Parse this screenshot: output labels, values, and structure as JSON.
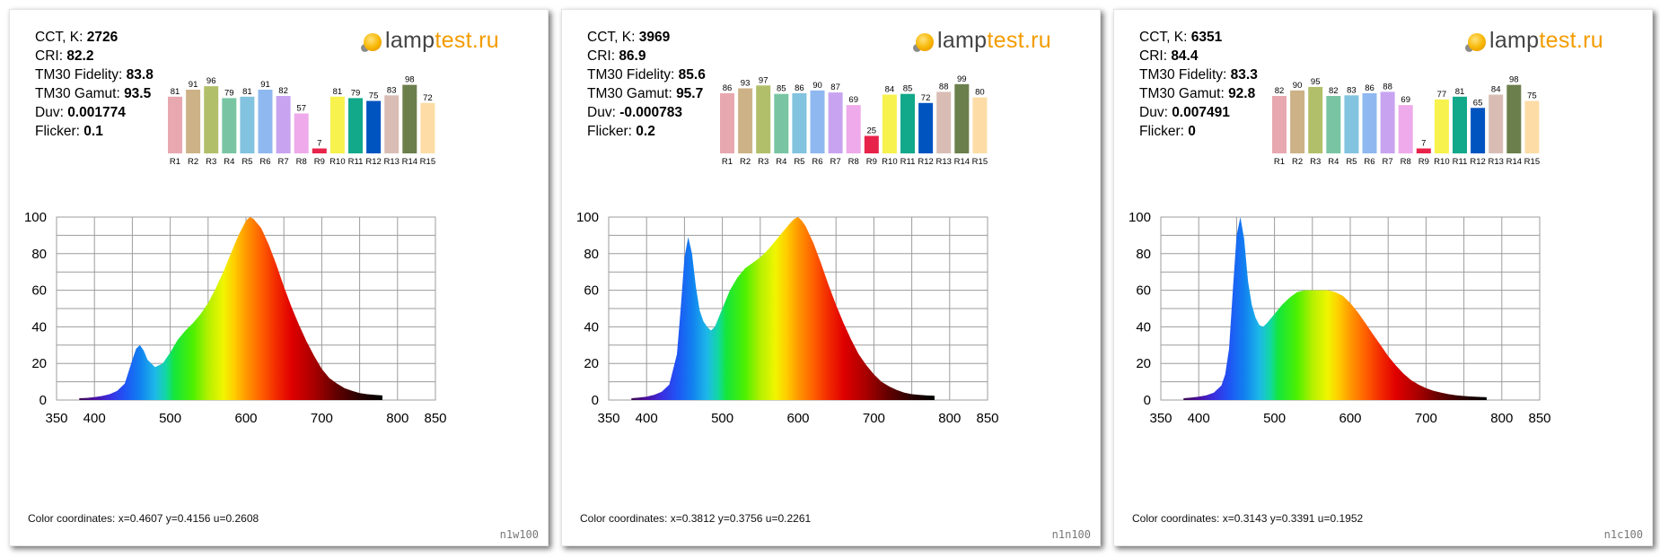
{
  "ri_labels": [
    "R1",
    "R2",
    "R3",
    "R4",
    "R5",
    "R6",
    "R7",
    "R8",
    "R9",
    "R10",
    "R11",
    "R12",
    "R13",
    "R14",
    "R15"
  ],
  "ri_colors": [
    "#e8a8b0",
    "#cdb287",
    "#b2bf6a",
    "#79c5a3",
    "#82c3df",
    "#8fb8f0",
    "#c8a4f0",
    "#eeaaea",
    "#e8234a",
    "#f7f24d",
    "#12a88a",
    "#0054c0",
    "#d9bdb5",
    "#6b7f4c",
    "#fddca6"
  ],
  "labels": {
    "cct": "CCT, K:",
    "cri": "CRI:",
    "fidelity": "TM30 Fidelity:",
    "gamut": "TM30 Gamut:",
    "duv": "Duv:",
    "flicker": "Flicker:"
  },
  "logo": {
    "lamp": "lamp",
    "test": "test.ru"
  },
  "panels": [
    {
      "code": "n1w100",
      "stats": {
        "cct": "2726",
        "cri": "82.2",
        "fidelity": "83.8",
        "gamut": "93.5",
        "duv": "0.001774",
        "flicker": "0.1"
      },
      "coords": "Color coordinates: x=0.4607 y=0.4156 u=0.2608",
      "chart_data": {
        "type": "area",
        "x_axis": {
          "min": 350,
          "max": 850,
          "ticks": [
            350,
            400,
            500,
            600,
            700,
            800,
            850
          ]
        },
        "y_axis": {
          "min": 0,
          "max": 100,
          "ticks": [
            0,
            20,
            40,
            60,
            80,
            100
          ]
        },
        "grid": true,
        "spectrum": {
          "x": [
            380,
            390,
            400,
            410,
            420,
            430,
            440,
            450,
            455,
            460,
            465,
            470,
            480,
            490,
            500,
            510,
            520,
            530,
            540,
            550,
            560,
            570,
            580,
            590,
            600,
            605,
            610,
            620,
            630,
            640,
            650,
            660,
            670,
            680,
            690,
            700,
            710,
            720,
            730,
            740,
            750,
            760,
            770,
            780
          ],
          "y": [
            1.0,
            1.2,
            1.6,
            2.2,
            3.2,
            5.0,
            9.0,
            22,
            28,
            30,
            27,
            22,
            18,
            20,
            26,
            33,
            38,
            42,
            47,
            53,
            61,
            70,
            80,
            90,
            98,
            100,
            99,
            94,
            85,
            74,
            62,
            51,
            41,
            32,
            24,
            17,
            12,
            9,
            6.5,
            5,
            3.8,
            3.2,
            2.8,
            2.5
          ]
        },
        "bars": {
          "categories": [
            "R1",
            "R2",
            "R3",
            "R4",
            "R5",
            "R6",
            "R7",
            "R8",
            "R9",
            "R10",
            "R11",
            "R12",
            "R13",
            "R14",
            "R15"
          ],
          "values": [
            81,
            91,
            96,
            79,
            81,
            91,
            82,
            57,
            7,
            81,
            79,
            75,
            83,
            98,
            72
          ]
        }
      }
    },
    {
      "code": "n1n100",
      "stats": {
        "cct": "3969",
        "cri": "86.9",
        "fidelity": "85.6",
        "gamut": "95.7",
        "duv": "-0.000783",
        "flicker": "0.2"
      },
      "coords": "Color coordinates: x=0.3812 y=0.3756 u=0.2261",
      "chart_data": {
        "type": "area",
        "x_axis": {
          "min": 350,
          "max": 850,
          "ticks": [
            350,
            400,
            500,
            600,
            700,
            800,
            850
          ]
        },
        "y_axis": {
          "min": 0,
          "max": 100,
          "ticks": [
            0,
            20,
            40,
            60,
            80,
            100
          ]
        },
        "grid": true,
        "spectrum": {
          "x": [
            380,
            390,
            400,
            410,
            420,
            430,
            440,
            445,
            450,
            455,
            460,
            465,
            470,
            475,
            480,
            485,
            490,
            500,
            510,
            520,
            530,
            540,
            550,
            560,
            570,
            580,
            590,
            595,
            600,
            605,
            610,
            620,
            630,
            640,
            650,
            660,
            670,
            680,
            690,
            700,
            710,
            720,
            730,
            740,
            750,
            760,
            770,
            780
          ],
          "y": [
            1.0,
            1.3,
            1.8,
            2.8,
            4.5,
            8.5,
            25,
            50,
            78,
            89,
            80,
            62,
            49,
            43,
            40,
            38,
            40,
            50,
            60,
            67,
            72,
            75,
            78,
            82,
            87,
            92,
            97,
            99,
            100,
            98,
            95,
            86,
            75,
            63,
            52,
            42,
            33,
            25,
            19,
            14,
            10,
            7.5,
            5.5,
            4,
            3.2,
            2.8,
            2.5,
            2.3
          ]
        },
        "bars": {
          "categories": [
            "R1",
            "R2",
            "R3",
            "R4",
            "R5",
            "R6",
            "R7",
            "R8",
            "R9",
            "R10",
            "R11",
            "R12",
            "R13",
            "R14",
            "R15"
          ],
          "values": [
            86,
            93,
            97,
            85,
            86,
            90,
            87,
            69,
            25,
            84,
            85,
            72,
            88,
            99,
            80
          ]
        }
      }
    },
    {
      "code": "n1c100",
      "stats": {
        "cct": "6351",
        "cri": "84.4",
        "fidelity": "83.3",
        "gamut": "92.8",
        "duv": "0.007491",
        "flicker": "0"
      },
      "coords": "Color coordinates: x=0.3143 y=0.3391 u=0.1952",
      "chart_data": {
        "type": "area",
        "x_axis": {
          "min": 350,
          "max": 850,
          "ticks": [
            350,
            400,
            500,
            600,
            700,
            800,
            850
          ]
        },
        "y_axis": {
          "min": 0,
          "max": 100,
          "ticks": [
            0,
            20,
            40,
            60,
            80,
            100
          ]
        },
        "grid": true,
        "spectrum": {
          "x": [
            380,
            390,
            400,
            410,
            420,
            430,
            435,
            440,
            445,
            450,
            455,
            460,
            465,
            470,
            475,
            480,
            485,
            490,
            500,
            510,
            520,
            530,
            540,
            550,
            560,
            570,
            580,
            590,
            600,
            610,
            620,
            630,
            640,
            650,
            660,
            670,
            680,
            690,
            700,
            710,
            720,
            730,
            740,
            750,
            760,
            770,
            780
          ],
          "y": [
            1.0,
            1.3,
            1.8,
            2.6,
            4.0,
            8.0,
            14,
            28,
            60,
            90,
            100,
            88,
            65,
            52,
            45,
            41,
            40,
            42,
            47,
            52,
            56,
            59,
            60,
            60,
            60,
            60,
            59,
            57,
            53,
            48,
            42,
            36,
            30,
            24,
            19,
            14.5,
            11,
            8.5,
            6.5,
            5,
            4,
            3.2,
            2.6,
            2.2,
            1.9,
            1.7,
            1.5
          ]
        },
        "bars": {
          "categories": [
            "R1",
            "R2",
            "R3",
            "R4",
            "R5",
            "R6",
            "R7",
            "R8",
            "R9",
            "R10",
            "R11",
            "R12",
            "R13",
            "R14",
            "R15"
          ],
          "values": [
            82,
            90,
            95,
            82,
            83,
            86,
            88,
            69,
            7,
            77,
            81,
            65,
            84,
            98,
            75
          ]
        }
      }
    }
  ]
}
